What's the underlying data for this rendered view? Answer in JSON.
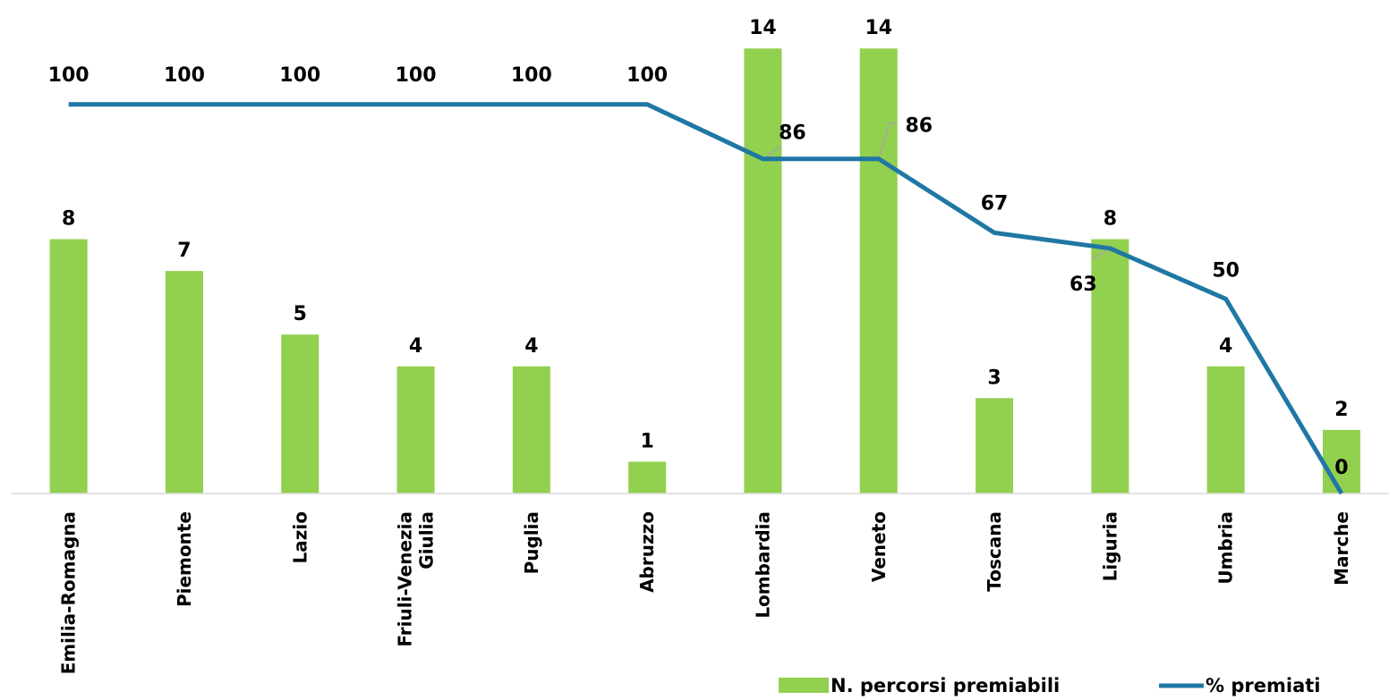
{
  "chart_data": {
    "type": "bar",
    "categories": [
      "Emilia-Romagna",
      "Piemonte",
      "Lazio",
      "Friuli-Venezia Giulia",
      "Puglia",
      "Abruzzo",
      "Lombardia",
      "Veneto",
      "Toscana",
      "Liguria",
      "Umbria",
      "Marche"
    ],
    "category_lines": [
      [
        "Emilia-Romagna"
      ],
      [
        "Piemonte"
      ],
      [
        "Lazio"
      ],
      [
        "Friuli-Venezia",
        "Giulia"
      ],
      [
        "Puglia"
      ],
      [
        "Abruzzo"
      ],
      [
        "Lombardia"
      ],
      [
        "Veneto"
      ],
      [
        "Toscana"
      ],
      [
        "Liguria"
      ],
      [
        "Umbria"
      ],
      [
        "Marche"
      ]
    ],
    "series": [
      {
        "name": "N. percorsi premiabili",
        "type": "bar",
        "color": "#92d050",
        "values": [
          8,
          7,
          5,
          4,
          4,
          1,
          14,
          14,
          3,
          8,
          4,
          2
        ]
      },
      {
        "name": "% premiati",
        "type": "line",
        "color": "#1f77a4",
        "values": [
          100,
          100,
          100,
          100,
          100,
          100,
          86,
          86,
          67,
          63,
          50,
          0
        ]
      }
    ],
    "bar_axis_range": [
      0,
      14.4
    ],
    "line_axis_range": [
      0,
      125
    ],
    "grid": false,
    "legend_position": "bottom-right"
  }
}
